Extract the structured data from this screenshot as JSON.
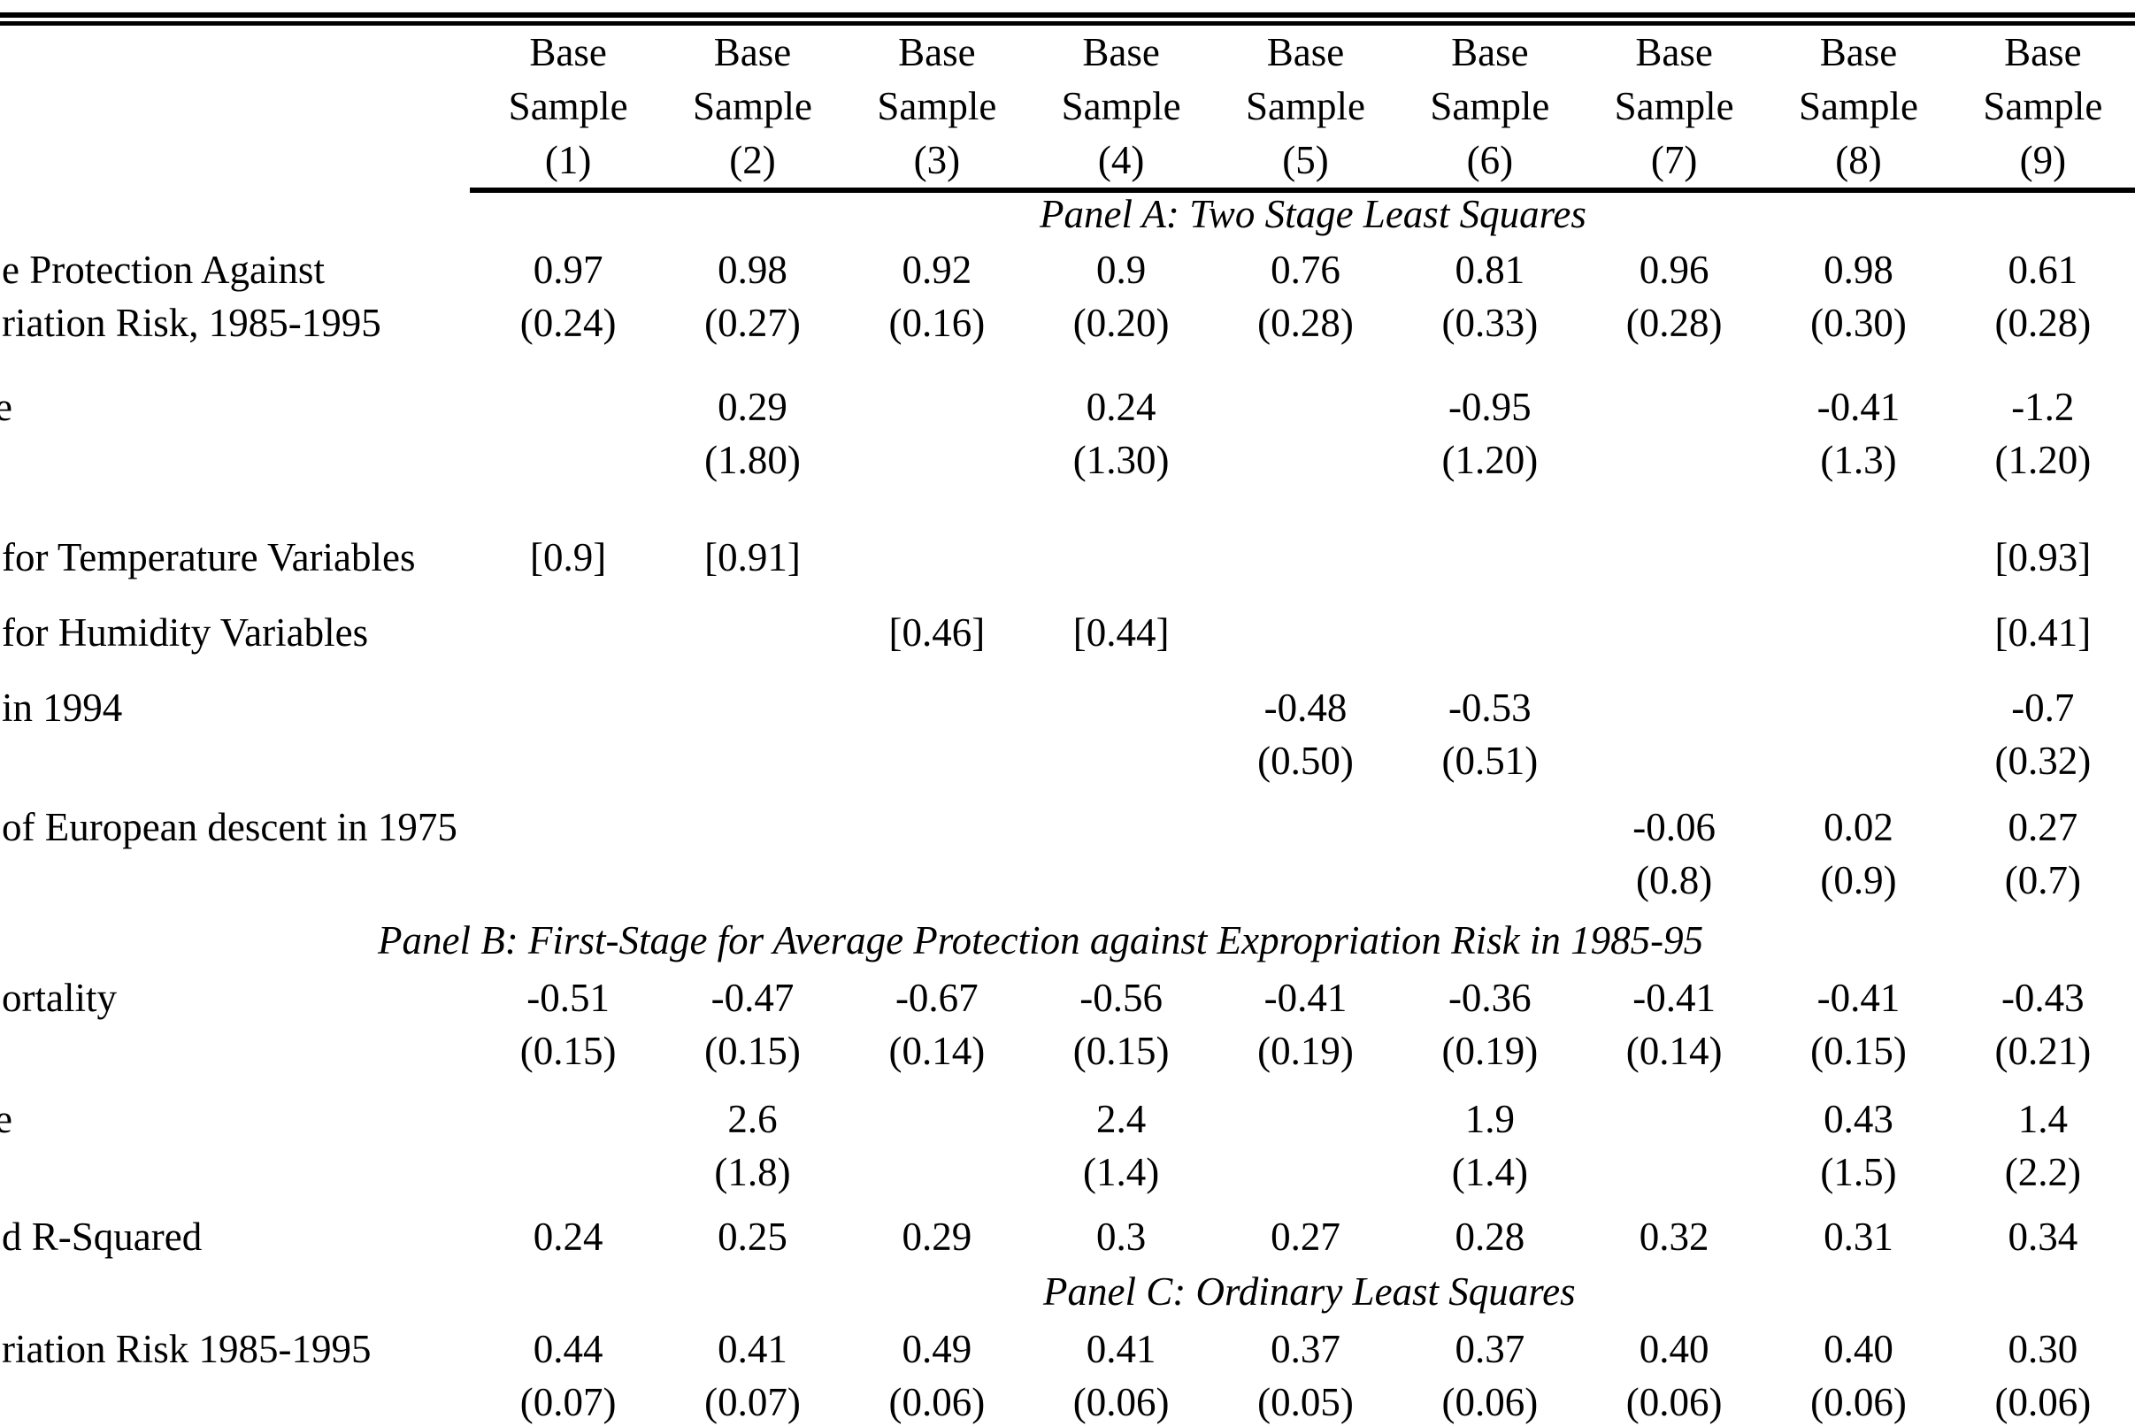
{
  "page": {
    "background": "#ffffff",
    "text_color": "#000000",
    "description_note": ""
  },
  "header": {
    "label1": "Base",
    "label2": "Sample",
    "column_numbers": [
      "(1)",
      "(2)",
      "(3)",
      "(4)",
      "(5)",
      "(6)",
      "(7)",
      "(8)",
      "(9)"
    ]
  },
  "rows": [
    {
      "key": "panel-a-title",
      "type": "panel",
      "title": "Panel A: Two Stage Least Squares"
    },
    {
      "key": "row-avg-protection",
      "type": "data",
      "label_lines": [
        "e Protection Against",
        "riation Risk, 1985-1995"
      ],
      "cells": [
        [
          "0.97",
          "(0.24)"
        ],
        [
          "0.98",
          "(0.27)"
        ],
        [
          "0.92",
          "(0.16)"
        ],
        [
          "0.9",
          "(0.20)"
        ],
        [
          "0.76",
          "(0.28)"
        ],
        [
          "0.81",
          "(0.33)"
        ],
        [
          "0.96",
          "(0.28)"
        ],
        [
          "0.98",
          "(0.30)"
        ],
        [
          "0.61",
          "(0.28)"
        ]
      ]
    },
    {
      "key": "row-latitude-a",
      "type": "data",
      "label_lines": [
        "e"
      ],
      "cells": [
        null,
        [
          "0.29",
          "(1.80)"
        ],
        null,
        [
          "0.24",
          "(1.30)"
        ],
        null,
        [
          "-0.95",
          "(1.20)"
        ],
        null,
        [
          "-0.41",
          "(1.3)"
        ],
        [
          "-1.2",
          "(1.20)"
        ]
      ]
    },
    {
      "key": "row-temperature",
      "type": "data",
      "label_lines": [
        "for Temperature Variables"
      ],
      "cells": [
        [
          "[0.9]"
        ],
        [
          "[0.91]"
        ],
        null,
        null,
        null,
        null,
        null,
        null,
        [
          "[0.93]"
        ]
      ]
    },
    {
      "key": "row-humidity",
      "type": "data",
      "label_lines": [
        "for Humidity Variables"
      ],
      "cells": [
        null,
        null,
        [
          "[0.46]"
        ],
        [
          "[0.44]"
        ],
        null,
        null,
        null,
        null,
        [
          "[0.41]"
        ]
      ]
    },
    {
      "key": "row-malaria-1994",
      "type": "data",
      "label_lines": [
        "in 1994"
      ],
      "cells": [
        null,
        null,
        null,
        null,
        [
          "-0.48",
          "(0.50)"
        ],
        [
          "-0.53",
          "(0.51)"
        ],
        null,
        null,
        [
          "-0.7",
          "(0.32)"
        ]
      ]
    },
    {
      "key": "row-european-descent",
      "type": "data",
      "label_lines": [
        "of European descent in 1975"
      ],
      "cells": [
        null,
        null,
        null,
        null,
        null,
        null,
        [
          "-0.06",
          "(0.8)"
        ],
        [
          "0.02",
          "(0.9)"
        ],
        [
          "0.27",
          "(0.7)"
        ]
      ]
    },
    {
      "key": "panel-b-title",
      "type": "panel",
      "title": "Panel B: First-Stage for Average Protection against Expropriation Risk in 1985-95"
    },
    {
      "key": "row-mortality",
      "type": "data",
      "label_lines": [
        "ortality"
      ],
      "cells": [
        [
          "-0.51",
          "(0.15)"
        ],
        [
          "-0.47",
          "(0.15)"
        ],
        [
          "-0.67",
          "(0.14)"
        ],
        [
          "-0.56",
          "(0.15)"
        ],
        [
          "-0.41",
          "(0.19)"
        ],
        [
          "-0.36",
          "(0.19)"
        ],
        [
          "-0.41",
          "(0.14)"
        ],
        [
          "-0.41",
          "(0.15)"
        ],
        [
          "-0.43",
          "(0.21)"
        ]
      ]
    },
    {
      "key": "row-latitude-b",
      "type": "data",
      "label_lines": [
        "e"
      ],
      "cells": [
        null,
        [
          "2.6",
          "(1.8)"
        ],
        null,
        [
          "2.4",
          "(1.4)"
        ],
        null,
        [
          "1.9",
          "(1.4)"
        ],
        null,
        [
          "0.43",
          "(1.5)"
        ],
        [
          "1.4",
          "(2.2)"
        ]
      ]
    },
    {
      "key": "row-r-squared",
      "type": "data",
      "label_lines": [
        "d R-Squared"
      ],
      "cells": [
        [
          "0.24"
        ],
        [
          "0.25"
        ],
        [
          "0.29"
        ],
        [
          "0.3"
        ],
        [
          "0.27"
        ],
        [
          "0.28"
        ],
        [
          "0.32"
        ],
        [
          "0.31"
        ],
        [
          "0.34"
        ]
      ]
    },
    {
      "key": "panel-c-title",
      "type": "panel",
      "title": "Panel C: Ordinary Least Squares"
    },
    {
      "key": "row-ols-expropriation",
      "type": "data",
      "label_lines": [
        "riation Risk 1985-1995"
      ],
      "cells": [
        [
          "0.44",
          "(0.07)"
        ],
        [
          "0.41",
          "(0.07)"
        ],
        [
          "0.49",
          "(0.06)"
        ],
        [
          "0.41",
          "(0.06)"
        ],
        [
          "0.37",
          "(0.05)"
        ],
        [
          "0.37",
          "(0.06)"
        ],
        [
          "0.40",
          "(0.06)"
        ],
        [
          "0.40",
          "(0.06)"
        ],
        [
          "0.30",
          "(0.06)"
        ]
      ]
    }
  ]
}
